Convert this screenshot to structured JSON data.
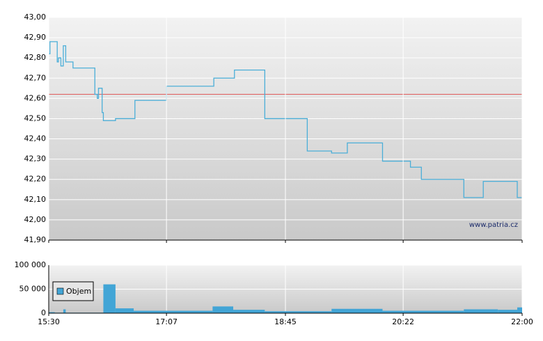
{
  "chart_data": [
    {
      "type": "line",
      "ylim": [
        41.9,
        43.0
      ],
      "yticks": [
        {
          "value": 41.9,
          "label": "41,90"
        },
        {
          "value": 42.0,
          "label": "42,00"
        },
        {
          "value": 42.1,
          "label": "42,10"
        },
        {
          "value": 42.2,
          "label": "42,20"
        },
        {
          "value": 42.3,
          "label": "42,30"
        },
        {
          "value": 42.4,
          "label": "42,40"
        },
        {
          "value": 42.5,
          "label": "42,50"
        },
        {
          "value": 42.6,
          "label": "42,60"
        },
        {
          "value": 42.7,
          "label": "42,70"
        },
        {
          "value": 42.8,
          "label": "42,80"
        },
        {
          "value": 42.9,
          "label": "42,90"
        },
        {
          "value": 43.0,
          "label": "43,00"
        }
      ],
      "xlim": [
        "15:30",
        "22:00"
      ],
      "grid": true,
      "reference_line": {
        "value": 42.62,
        "color": "#e05a5a"
      },
      "annotation": "www.patria.cz",
      "series": [
        {
          "color": "#4aaed8",
          "x": [
            "15:30",
            "15:31",
            "15:37",
            "15:38",
            "15:40",
            "15:42",
            "15:44",
            "15:50",
            "16:08",
            "16:10",
            "16:11",
            "16:14",
            "16:15",
            "16:25",
            "16:41",
            "17:07",
            "17:46",
            "18:03",
            "18:28",
            "19:03",
            "19:23",
            "19:36",
            "20:05",
            "20:28",
            "20:37",
            "21:12",
            "21:28",
            "21:56",
            "22:00"
          ],
          "values": [
            42.82,
            42.88,
            42.78,
            42.8,
            42.76,
            42.86,
            42.78,
            42.75,
            42.62,
            42.6,
            42.65,
            42.53,
            42.49,
            42.5,
            42.59,
            42.66,
            42.7,
            42.74,
            42.5,
            42.34,
            42.33,
            42.38,
            42.29,
            42.26,
            42.2,
            42.11,
            42.19,
            42.11,
            42.11
          ]
        }
      ]
    },
    {
      "type": "bar",
      "ylim": [
        0,
        100000
      ],
      "yticks": [
        0,
        {
          "value": 50000,
          "label": "50 000"
        },
        {
          "value": 100000,
          "label": "100 000"
        }
      ],
      "xlim": [
        "15:30",
        "22:00"
      ],
      "xticks": [
        "15:30",
        "17:07",
        "18:45",
        "20:22",
        "22:00"
      ],
      "grid": true,
      "legend": "top-left",
      "series": [
        {
          "name": "Objem",
          "color": "#42a5d6",
          "x": [
            "15:30",
            "15:35",
            "15:42",
            "15:44",
            "16:15",
            "16:25",
            "16:40",
            "17:45",
            "18:02",
            "18:28",
            "19:23",
            "20:05",
            "21:12",
            "21:40",
            "21:56"
          ],
          "values": [
            2000,
            1000,
            8000,
            1000,
            60000,
            10000,
            5000,
            14000,
            7000,
            4000,
            9000,
            5000,
            8000,
            7000,
            12000
          ]
        }
      ]
    }
  ]
}
